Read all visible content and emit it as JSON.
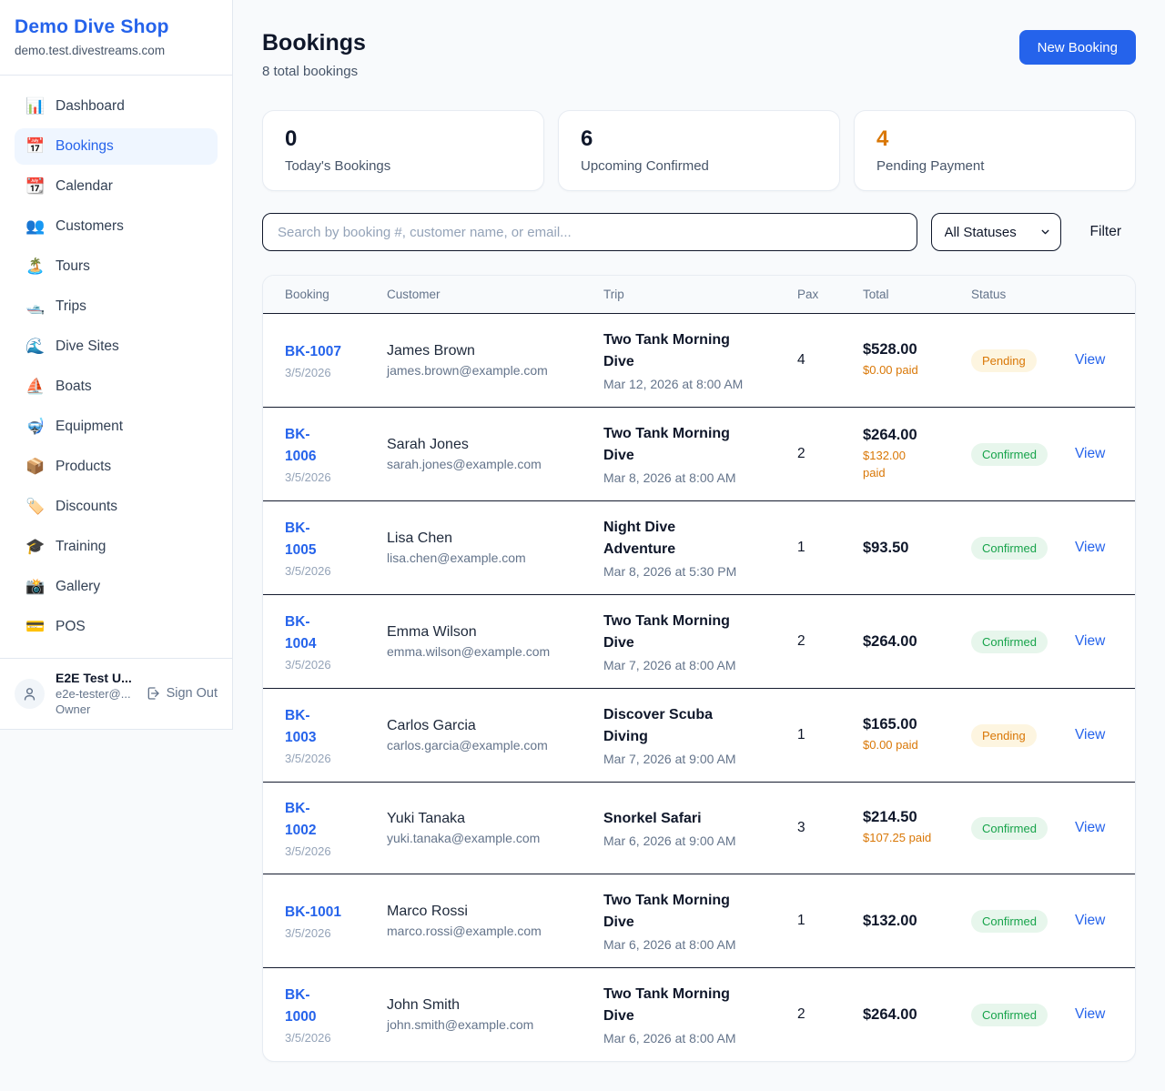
{
  "sidebar": {
    "shop_name": "Demo Dive Shop",
    "shop_domain": "demo.test.divestreams.com",
    "items": [
      {
        "label": "Dashboard",
        "icon": "📊",
        "active": false
      },
      {
        "label": "Bookings",
        "icon": "📅",
        "active": true
      },
      {
        "label": "Calendar",
        "icon": "📆",
        "active": false
      },
      {
        "label": "Customers",
        "icon": "👥",
        "active": false
      },
      {
        "label": "Tours",
        "icon": "🏝️",
        "active": false
      },
      {
        "label": "Trips",
        "icon": "🛥️",
        "active": false
      },
      {
        "label": "Dive Sites",
        "icon": "🌊",
        "active": false
      },
      {
        "label": "Boats",
        "icon": "⛵",
        "active": false
      },
      {
        "label": "Equipment",
        "icon": "🤿",
        "active": false
      },
      {
        "label": "Products",
        "icon": "📦",
        "active": false
      },
      {
        "label": "Discounts",
        "icon": "🏷️",
        "active": false
      },
      {
        "label": "Training",
        "icon": "🎓",
        "active": false
      },
      {
        "label": "Gallery",
        "icon": "📸",
        "active": false
      },
      {
        "label": "POS",
        "icon": "💳",
        "active": false
      }
    ],
    "user": {
      "name": "E2E Test U...",
      "email": "e2e-tester@...",
      "role": "Owner",
      "sign_out_label": "Sign Out"
    }
  },
  "header": {
    "title": "Bookings",
    "subtitle": "8 total bookings",
    "new_booking_label": "New Booking"
  },
  "stats": [
    {
      "value": "0",
      "label": "Today's Bookings",
      "accent": false
    },
    {
      "value": "6",
      "label": "Upcoming Confirmed",
      "accent": false
    },
    {
      "value": "4",
      "label": "Pending Payment",
      "accent": true
    }
  ],
  "controls": {
    "search_placeholder": "Search by booking #, customer name, or email...",
    "status_filter_value": "All Statuses",
    "filter_label": "Filter"
  },
  "table": {
    "columns": [
      "Booking",
      "Customer",
      "Trip",
      "Pax",
      "Total",
      "Status"
    ],
    "view_label": "View",
    "rows": [
      {
        "id": "BK-1007",
        "id_wrap": false,
        "date": "3/5/2026",
        "name": "James Brown",
        "email": "james.brown@example.com",
        "trip": "Two Tank Morning Dive",
        "trip_datetime": "Mar 12, 2026 at 8:00 AM",
        "pax": "4",
        "total": "$528.00",
        "paid": "$0.00 paid",
        "paid_wrap": false,
        "status": "Pending"
      },
      {
        "id": "BK-1006",
        "id_wrap": true,
        "date": "3/5/2026",
        "name": "Sarah Jones",
        "email": "sarah.jones@example.com",
        "trip": "Two Tank Morning Dive",
        "trip_datetime": "Mar 8, 2026 at 8:00 AM",
        "pax": "2",
        "total": "$264.00",
        "paid": "$132.00 paid",
        "paid_wrap": true,
        "status": "Confirmed"
      },
      {
        "id": "BK-1005",
        "id_wrap": true,
        "date": "3/5/2026",
        "name": "Lisa Chen",
        "email": "lisa.chen@example.com",
        "trip": "Night Dive Adventure",
        "trip_datetime": "Mar 8, 2026 at 5:30 PM",
        "pax": "1",
        "total": "$93.50",
        "paid": null,
        "paid_wrap": false,
        "status": "Confirmed"
      },
      {
        "id": "BK-1004",
        "id_wrap": true,
        "date": "3/5/2026",
        "name": "Emma Wilson",
        "email": "emma.wilson@example.com",
        "trip": "Two Tank Morning Dive",
        "trip_datetime": "Mar 7, 2026 at 8:00 AM",
        "pax": "2",
        "total": "$264.00",
        "paid": null,
        "paid_wrap": false,
        "status": "Confirmed"
      },
      {
        "id": "BK-1003",
        "id_wrap": true,
        "date": "3/5/2026",
        "name": "Carlos Garcia",
        "email": "carlos.garcia@example.com",
        "trip": "Discover Scuba Diving",
        "trip_datetime": "Mar 7, 2026 at 9:00 AM",
        "pax": "1",
        "total": "$165.00",
        "paid": "$0.00 paid",
        "paid_wrap": false,
        "status": "Pending"
      },
      {
        "id": "BK-1002",
        "id_wrap": true,
        "date": "3/5/2026",
        "name": "Yuki Tanaka",
        "email": "yuki.tanaka@example.com",
        "trip": "Snorkel Safari",
        "trip_datetime": "Mar 6, 2026 at 9:00 AM",
        "pax": "3",
        "total": "$214.50",
        "paid": "$107.25 paid",
        "paid_wrap": false,
        "status": "Confirmed"
      },
      {
        "id": "BK-1001",
        "id_wrap": false,
        "date": "3/5/2026",
        "name": "Marco Rossi",
        "email": "marco.rossi@example.com",
        "trip": "Two Tank Morning Dive",
        "trip_datetime": "Mar 6, 2026 at 8:00 AM",
        "pax": "1",
        "total": "$132.00",
        "paid": null,
        "paid_wrap": false,
        "status": "Confirmed"
      },
      {
        "id": "BK-1000",
        "id_wrap": true,
        "date": "3/5/2026",
        "name": "John Smith",
        "email": "john.smith@example.com",
        "trip": "Two Tank Morning Dive",
        "trip_datetime": "Mar 6, 2026 at 8:00 AM",
        "pax": "2",
        "total": "$264.00",
        "paid": null,
        "paid_wrap": false,
        "status": "Confirmed"
      }
    ]
  },
  "theme": {
    "accent": "#2563eb",
    "accent_light_bg": "#eff6ff",
    "orange": "#d97706",
    "pending_bg": "#fdf5e0",
    "green": "#16a34a",
    "confirmed_bg": "#e7f6ec",
    "dark": "#0f172a",
    "row_divider": "#141b2e",
    "page_bg": "#f8fafc"
  }
}
